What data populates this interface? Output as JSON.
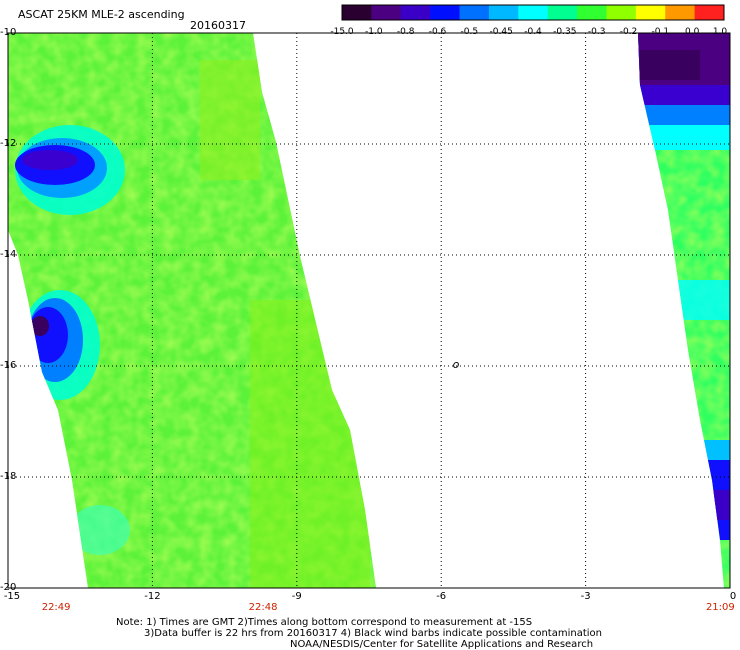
{
  "title": "ASCAT 25KM MLE-2 ascending",
  "date": "20160317",
  "colorbar": {
    "labels": [
      "-15.0",
      "-1.0",
      "-0.8",
      "-0.6",
      "-0.5",
      "-0.45",
      "-0.4",
      "-0.35",
      "-0.3",
      "-0.2",
      "-0.1",
      "0.0",
      "1.0"
    ],
    "colors": [
      "#2a0030",
      "#4b0082",
      "#3a00c8",
      "#0010ff",
      "#0070ff",
      "#00b8ff",
      "#00ffff",
      "#00ff90",
      "#30ff30",
      "#90ff00",
      "#ffff00",
      "#ff9900",
      "#ff2020"
    ]
  },
  "chart_data": {
    "type": "heatmap",
    "x_ticks": [
      "-15",
      "-12",
      "-9",
      "-6",
      "-3",
      "0"
    ],
    "y_ticks": [
      "-10",
      "-12",
      "-14",
      "-16",
      "-18",
      "-20"
    ],
    "xlim": [
      -15,
      0
    ],
    "ylim": [
      -20,
      -10
    ],
    "pass_times": [
      {
        "label": "22:49",
        "x": -14
      },
      {
        "label": "22:48",
        "x": -9.7
      },
      {
        "label": "21:09",
        "x": -0.2
      }
    ],
    "marker": {
      "label": "o",
      "x": -5.7,
      "y": -16
    }
  },
  "notes": {
    "line1": "Note: 1) Times are GMT 2)Times along bottom correspond to measurement at -15S",
    "line2": "3)Data buffer is 22 hrs from 20160317 4) Black wind barbs indicate possible contamination",
    "line3": "NOAA/NESDIS/Center for Satellite Applications and Research"
  }
}
